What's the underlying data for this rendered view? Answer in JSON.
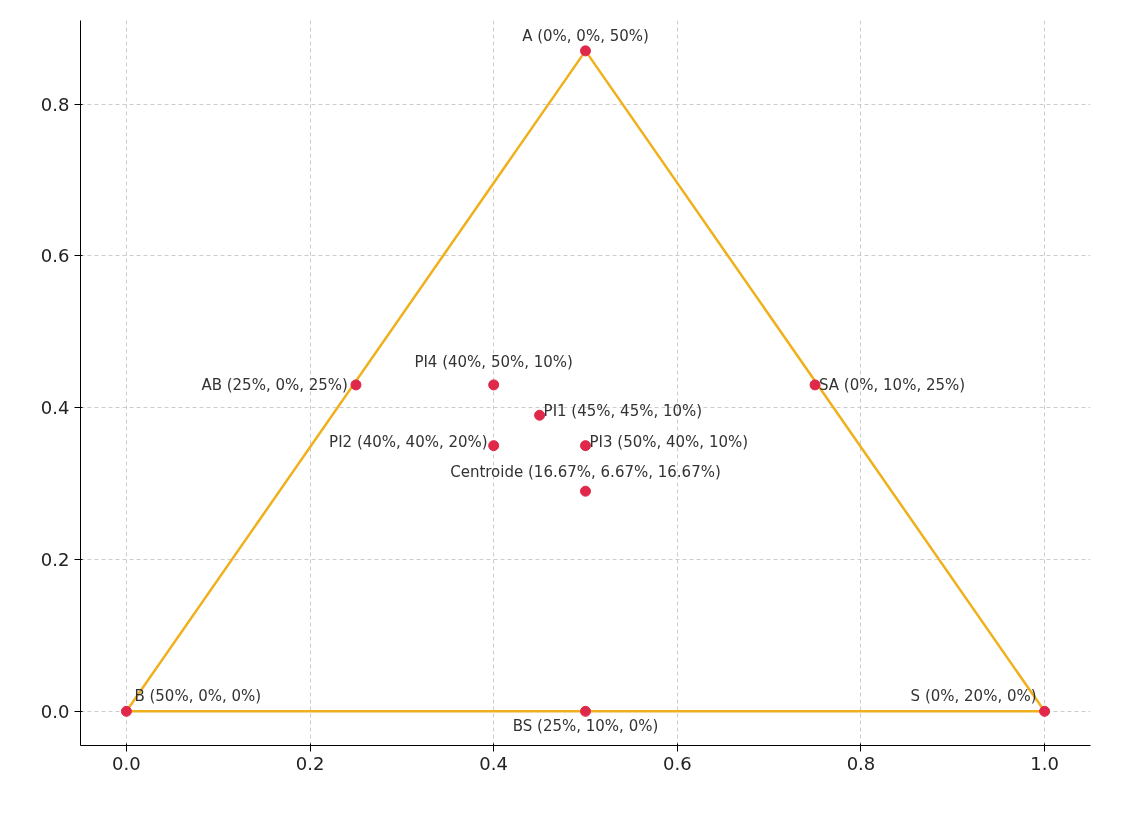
{
  "chart_data": {
    "type": "scatter",
    "x": [
      0.5,
      0,
      1,
      0.25,
      0.4,
      0.75,
      0.45,
      0.4,
      0.5,
      0.5,
      0.5
    ],
    "series": [
      {
        "type": "line",
        "x": [
          0,
          0.5
        ],
        "values": [
          0,
          0.87
        ],
        "color": "#f0b01c",
        "marker": "none"
      },
      {
        "type": "line",
        "x": [
          0.5,
          1
        ],
        "values": [
          0.87,
          0
        ],
        "color": "#f0b01c",
        "marker": "none"
      },
      {
        "type": "line",
        "x": [
          0,
          1
        ],
        "values": [
          0,
          0
        ],
        "color": "#f0b01c",
        "marker": "none"
      },
      {
        "values": [
          0.87,
          0,
          0,
          0.43,
          0.43,
          0.43,
          0.39,
          0.35,
          0.35,
          0.29,
          0
        ],
        "color": "#e0284a",
        "marker": "circle"
      }
    ],
    "annotations": [
      {
        "text": "A (0%, 0%, 50%)",
        "x": 0.5,
        "y": 0.87
      },
      {
        "text": "B (50%, 0%, 0%)",
        "x": 0,
        "y": 0
      },
      {
        "text": "S (0%, 20%, 0%)",
        "x": 1,
        "y": 0
      },
      {
        "text": "AB (25%, 0%, 25%)",
        "x": 0.25,
        "y": 0.43
      },
      {
        "text": "PI4 (40%, 50%, 10%)",
        "x": 0.4,
        "y": 0.43
      },
      {
        "text": "SA (0%, 10%, 25%)",
        "x": 0.75,
        "y": 0.43
      },
      {
        "text": "PI1 (45%, 45%, 10%)",
        "x": 0.45,
        "y": 0.39
      },
      {
        "text": "PI2 (40%, 40%, 20%)",
        "x": 0.4,
        "y": 0.35
      },
      {
        "text": "PI3 (50%, 40%, 10%)",
        "x": 0.5,
        "y": 0.35
      },
      {
        "text": "Centroide (16.67%, 6.67%, 16.67%)",
        "x": 0.5,
        "y": 0.29
      },
      {
        "text": "BS (25%, 10%, 0%)",
        "x": 0.5,
        "y": 0
      }
    ],
    "xlim": [
      -0.05,
      1.05
    ],
    "ylim": [
      -0.045,
      0.91
    ],
    "xticks": [
      {
        "value": 0,
        "label": "0.0"
      },
      {
        "value": 0.2,
        "label": "0.2"
      },
      {
        "value": 0.4,
        "label": "0.4"
      },
      {
        "value": 0.6,
        "label": "0.6"
      },
      {
        "value": 0.8,
        "label": "0.8"
      },
      {
        "value": 1,
        "label": "1.0"
      }
    ],
    "yticks": [
      {
        "value": 0,
        "label": "0.0"
      },
      {
        "value": 0.2,
        "label": "0.2"
      },
      {
        "value": 0.4,
        "label": "0.4"
      },
      {
        "value": 0.6,
        "label": "0.6"
      },
      {
        "value": 0.8,
        "label": "0.8"
      }
    ],
    "grid": true
  }
}
